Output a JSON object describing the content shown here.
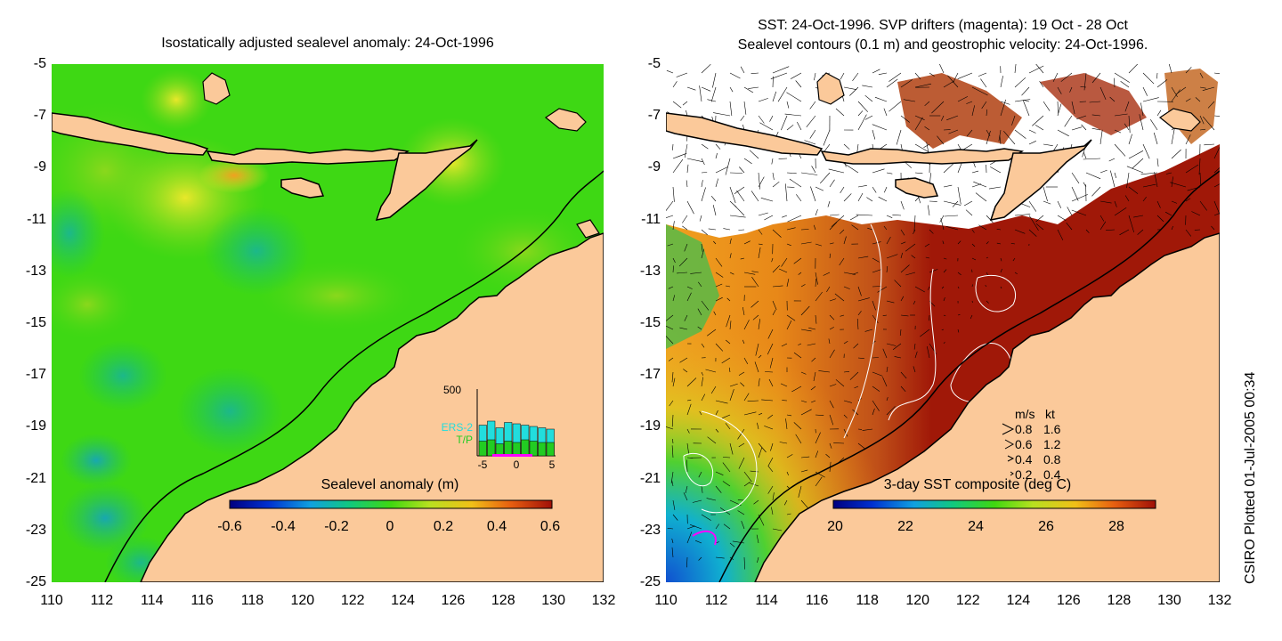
{
  "left_panel": {
    "title": "Isostatically adjusted sealevel anomaly: 24-Oct-1996",
    "colorbar": {
      "title": "Sealevel anomaly (m)",
      "ticks": [
        "-0.6",
        "-0.4",
        "-0.2",
        "0",
        "0.2",
        "0.4",
        "0.6"
      ]
    },
    "inset": {
      "ymax_label": "500",
      "series": [
        "ERS-2",
        "T/P"
      ],
      "series_colors": [
        "#22dddd",
        "#22cc22"
      ],
      "x_ticks": [
        "-5",
        "0",
        "5"
      ],
      "ers2_counts": [
        230,
        260,
        210,
        250,
        240,
        230,
        220,
        210,
        200
      ],
      "tp_counts": [
        110,
        120,
        90,
        110,
        100,
        120,
        110,
        100,
        100
      ]
    }
  },
  "right_panel": {
    "title_line1": "SST: 24-Oct-1996. SVP drifters (magenta): 19 Oct - 28 Oct",
    "title_line2": "Sealevel contours (0.1 m) and geostrophic velocity: 24-Oct-1996.",
    "colorbar": {
      "title": "3-day SST composite (deg C)",
      "ticks": [
        "20",
        "22",
        "24",
        "26",
        "28"
      ]
    },
    "velocity_legend": {
      "header_ms": "m/s",
      "header_kt": "kt",
      "rows": [
        {
          "ms": "0.8",
          "kt": "1.6"
        },
        {
          "ms": "0.6",
          "kt": "1.2"
        },
        {
          "ms": "0.4",
          "kt": "0.8"
        },
        {
          "ms": "0.2",
          "kt": "0.4"
        }
      ]
    }
  },
  "axes": {
    "y_ticks": [
      "-5",
      "-7",
      "-9",
      "-11",
      "-13",
      "-15",
      "-17",
      "-19",
      "-21",
      "-23",
      "-25"
    ],
    "x_ticks": [
      "110",
      "112",
      "114",
      "116",
      "118",
      "120",
      "122",
      "124",
      "126",
      "128",
      "130",
      "132"
    ],
    "lat_range": [
      -25,
      -5
    ],
    "lon_range": [
      110,
      132
    ]
  },
  "credit": "CSIRO Plotted 01-Jul-2005 00:34",
  "colors": {
    "land": "#fbc99a",
    "coast": "#000000",
    "sst_warm": "#a01800",
    "sla_base": "#33dd11"
  }
}
